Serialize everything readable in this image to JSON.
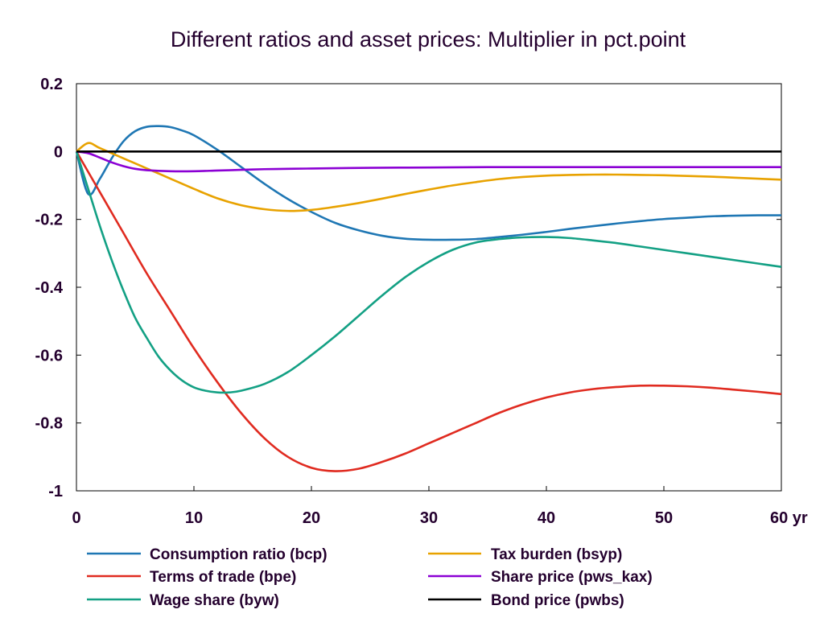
{
  "chart_data": {
    "type": "line",
    "title": "Different ratios and asset prices: Multiplier in pct.point",
    "xlabel": "",
    "ylabel": "",
    "xlim": [
      0,
      60
    ],
    "ylim": [
      -1,
      0.2
    ],
    "x_ticks": [
      0,
      10,
      20,
      30,
      40,
      50,
      60
    ],
    "x_tick_labels": [
      "0",
      "10",
      "20",
      "30",
      "40",
      "50",
      "60 yr"
    ],
    "y_ticks": [
      0.2,
      0,
      -0.2,
      -0.4,
      -0.6,
      -0.8,
      -1
    ],
    "y_tick_labels": [
      "0.2",
      "0",
      "-0.2",
      "-0.4",
      "-0.6",
      "-0.8",
      "-1"
    ],
    "grid": false,
    "legend_position": "bottom",
    "series": [
      {
        "name": "Consumption ratio (bcp)",
        "color": "#1f77b4",
        "x": [
          0,
          1,
          2,
          3,
          4,
          5,
          6,
          7,
          8,
          9,
          10,
          12,
          14,
          16,
          18,
          20,
          22,
          24,
          26,
          28,
          30,
          32,
          34,
          36,
          38,
          40,
          42,
          44,
          46,
          48,
          50,
          52,
          54,
          56,
          58,
          60
        ],
        "y": [
          0,
          -0.125,
          -0.08,
          -0.02,
          0.03,
          0.06,
          0.073,
          0.075,
          0.072,
          0.062,
          0.048,
          0.005,
          -0.045,
          -0.095,
          -0.14,
          -0.178,
          -0.21,
          -0.232,
          -0.248,
          -0.257,
          -0.26,
          -0.26,
          -0.258,
          -0.252,
          -0.245,
          -0.237,
          -0.228,
          -0.22,
          -0.212,
          -0.205,
          -0.199,
          -0.195,
          -0.191,
          -0.189,
          -0.188,
          -0.188
        ]
      },
      {
        "name": "Terms of trade (bpe)",
        "color": "#e02b20",
        "x": [
          0,
          1,
          2,
          3,
          4,
          6,
          8,
          10,
          12,
          14,
          16,
          18,
          20,
          22,
          24,
          26,
          28,
          30,
          32,
          34,
          36,
          38,
          40,
          42,
          44,
          46,
          48,
          50,
          52,
          54,
          56,
          58,
          60
        ],
        "y": [
          0,
          -0.06,
          -0.12,
          -0.18,
          -0.24,
          -0.36,
          -0.47,
          -0.58,
          -0.68,
          -0.77,
          -0.845,
          -0.9,
          -0.932,
          -0.942,
          -0.935,
          -0.915,
          -0.89,
          -0.86,
          -0.83,
          -0.8,
          -0.77,
          -0.745,
          -0.725,
          -0.71,
          -0.7,
          -0.694,
          -0.69,
          -0.69,
          -0.692,
          -0.696,
          -0.702,
          -0.708,
          -0.715
        ]
      },
      {
        "name": "Wage share (byw)",
        "color": "#13a084",
        "x": [
          0,
          1,
          2,
          3,
          4,
          5,
          6,
          7,
          8,
          9,
          10,
          11,
          12,
          13,
          14,
          16,
          18,
          20,
          22,
          24,
          26,
          28,
          30,
          32,
          34,
          36,
          38,
          40,
          42,
          44,
          46,
          48,
          50,
          52,
          54,
          56,
          58,
          60
        ],
        "y": [
          0,
          -0.11,
          -0.22,
          -0.32,
          -0.41,
          -0.49,
          -0.55,
          -0.605,
          -0.645,
          -0.675,
          -0.695,
          -0.705,
          -0.71,
          -0.71,
          -0.705,
          -0.685,
          -0.65,
          -0.6,
          -0.545,
          -0.485,
          -0.425,
          -0.37,
          -0.325,
          -0.29,
          -0.268,
          -0.258,
          -0.253,
          -0.252,
          -0.255,
          -0.262,
          -0.27,
          -0.28,
          -0.29,
          -0.3,
          -0.31,
          -0.32,
          -0.33,
          -0.34
        ]
      },
      {
        "name": "Tax burden (bsyp)",
        "color": "#e8a200",
        "x": [
          0,
          1,
          2,
          4,
          6,
          8,
          10,
          12,
          14,
          16,
          18,
          20,
          22,
          24,
          26,
          28,
          30,
          32,
          34,
          36,
          38,
          40,
          42,
          44,
          46,
          48,
          50,
          52,
          54,
          56,
          58,
          60
        ],
        "y": [
          0,
          0.025,
          0.01,
          -0.02,
          -0.05,
          -0.08,
          -0.11,
          -0.138,
          -0.158,
          -0.17,
          -0.175,
          -0.172,
          -0.163,
          -0.152,
          -0.139,
          -0.125,
          -0.112,
          -0.1,
          -0.09,
          -0.081,
          -0.075,
          -0.071,
          -0.069,
          -0.068,
          -0.068,
          -0.069,
          -0.07,
          -0.072,
          -0.074,
          -0.077,
          -0.08,
          -0.083
        ]
      },
      {
        "name": "Share price (pws_kax)",
        "color": "#8b00d4",
        "x": [
          0,
          1,
          2,
          3,
          4,
          5,
          6,
          8,
          10,
          12,
          14,
          16,
          18,
          20,
          25,
          30,
          35,
          40,
          45,
          50,
          55,
          60
        ],
        "y": [
          0,
          -0.005,
          -0.018,
          -0.032,
          -0.043,
          -0.051,
          -0.055,
          -0.058,
          -0.058,
          -0.056,
          -0.054,
          -0.052,
          -0.051,
          -0.05,
          -0.048,
          -0.047,
          -0.046,
          -0.046,
          -0.046,
          -0.046,
          -0.046,
          -0.046
        ]
      },
      {
        "name": "Bond price (pwbs)",
        "color": "#000000",
        "x": [
          0,
          60
        ],
        "y": [
          0,
          0
        ]
      }
    ]
  }
}
